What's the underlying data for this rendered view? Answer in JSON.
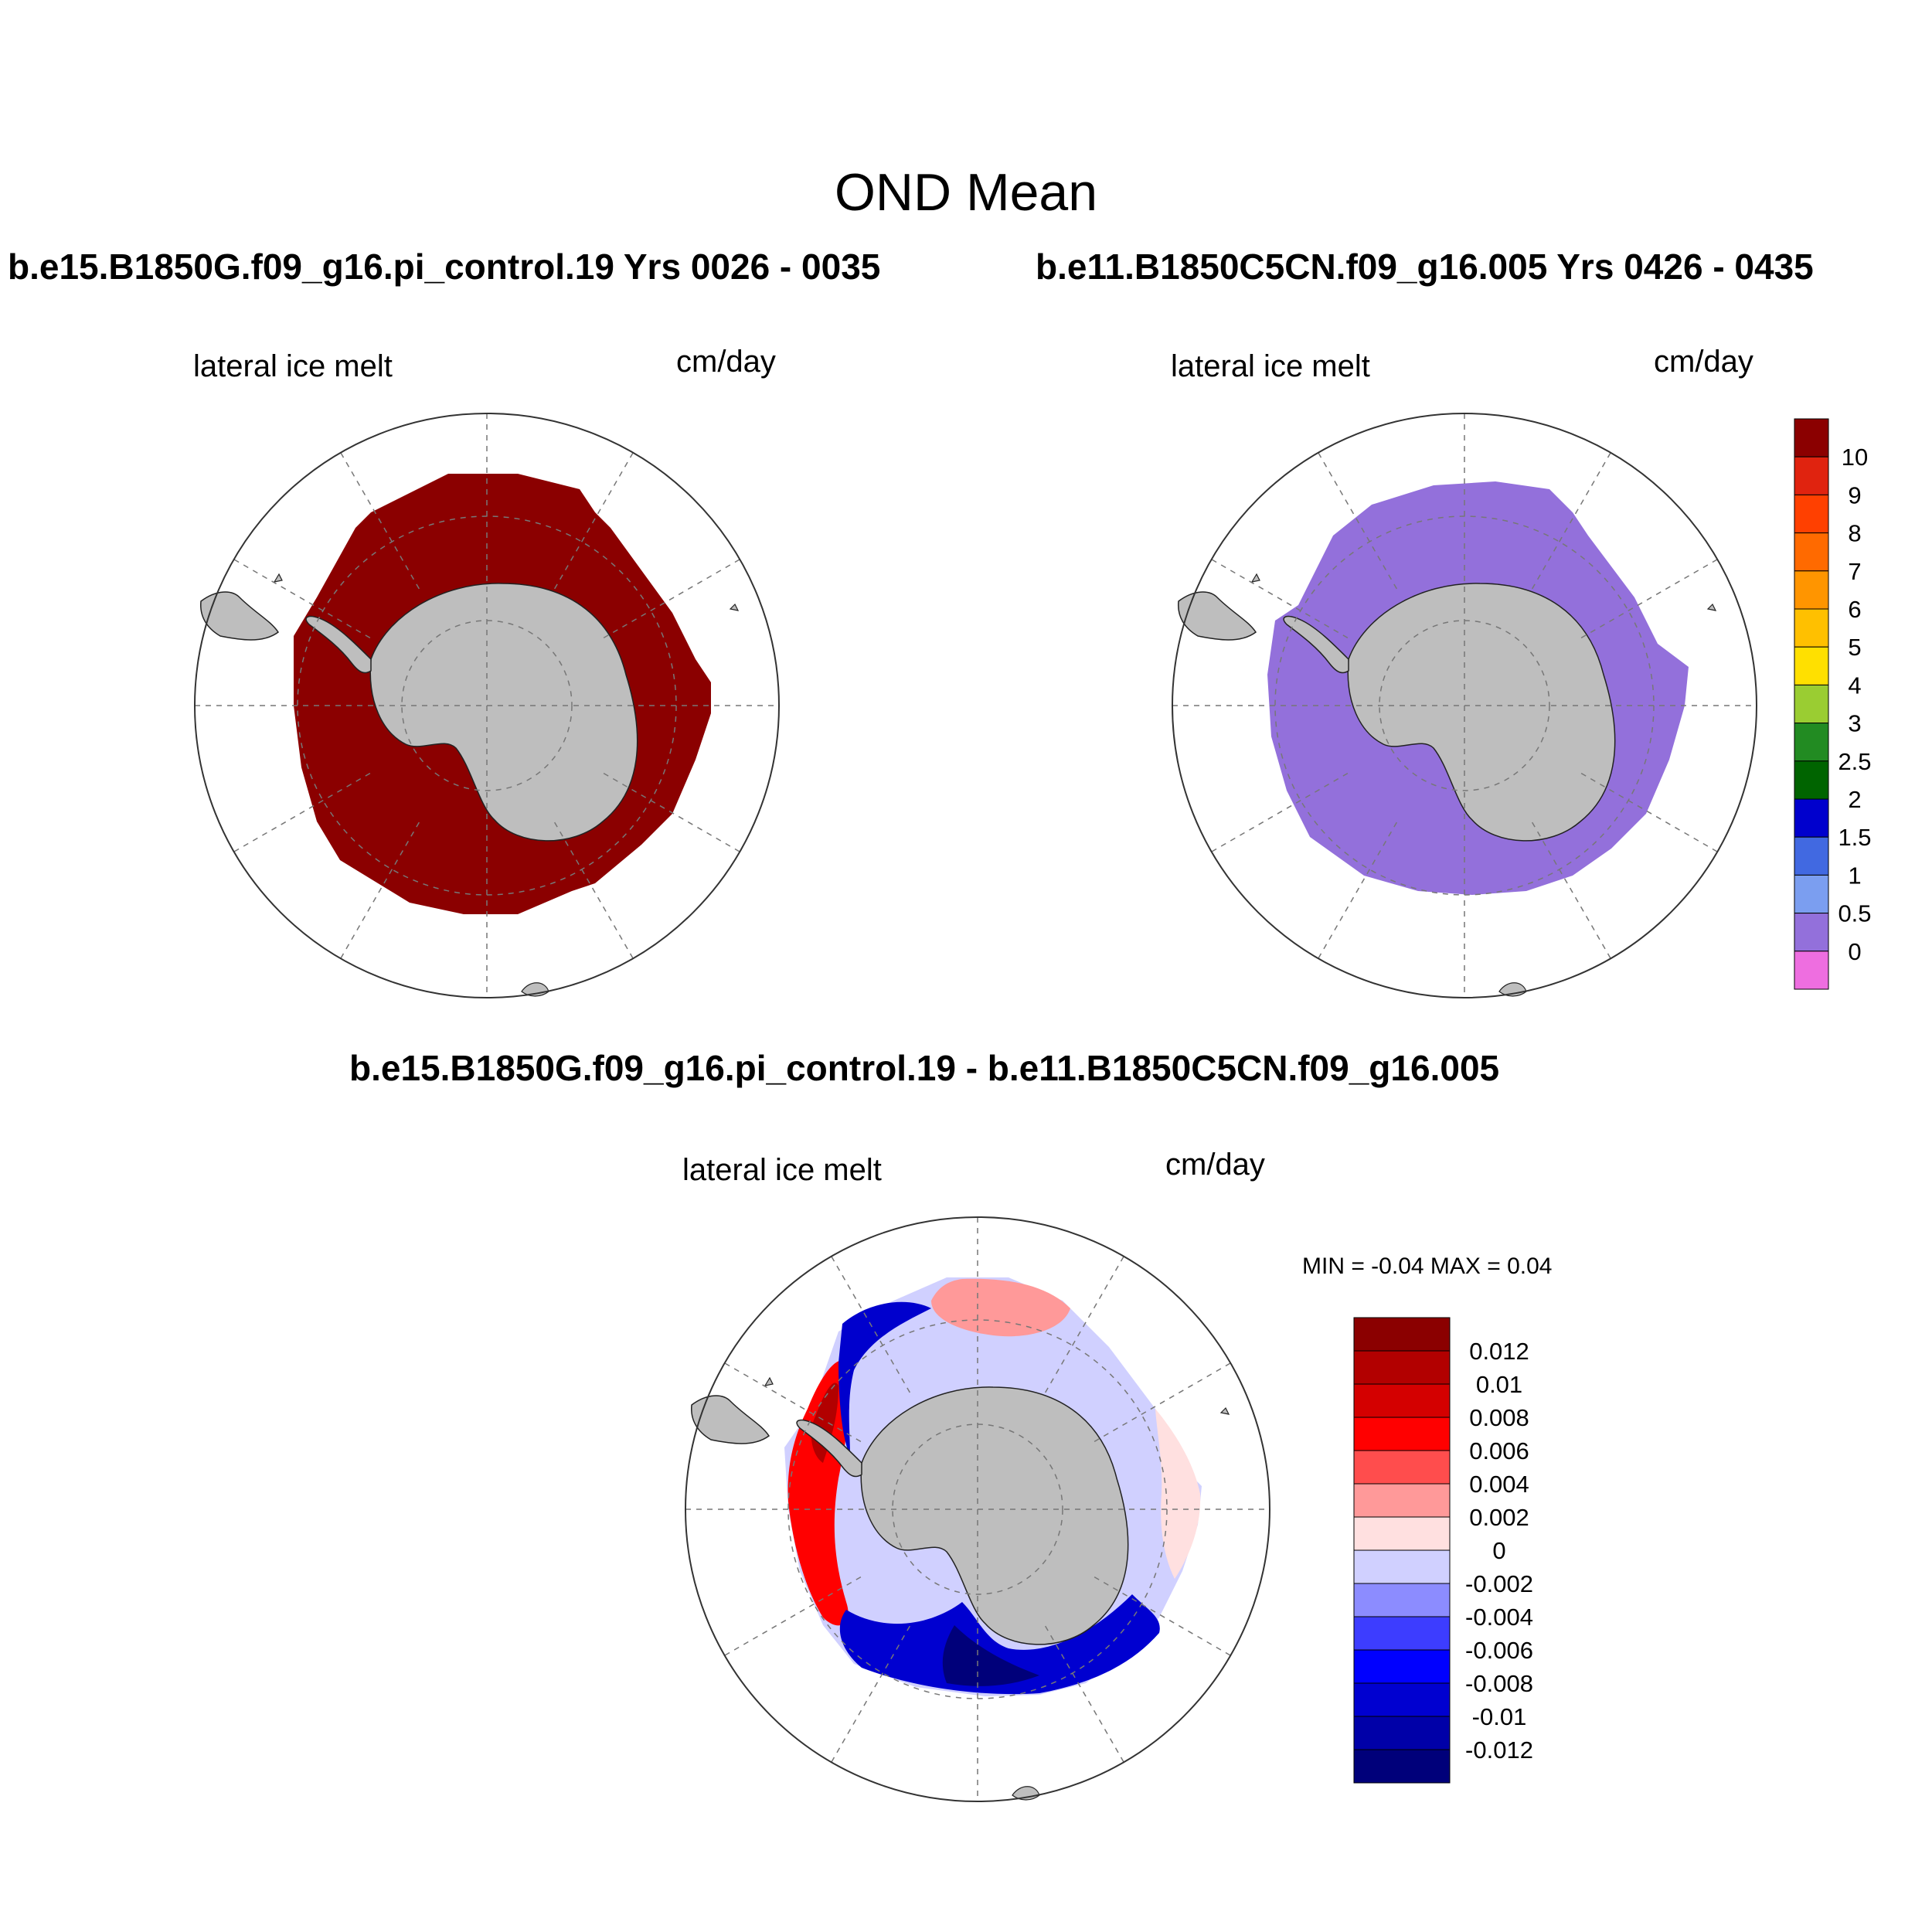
{
  "figure": {
    "title": "OND Mean"
  },
  "panels": [
    {
      "case_title": "b.e15.B1850G.f09_g16.pi_control.19  Yrs 0026 - 0035",
      "left_label": "lateral ice melt",
      "right_label": "cm/day",
      "fill_color": "#8b0000"
    },
    {
      "case_title": "b.e11.B1850C5CN.f09_g16.005  Yrs 0426 - 0435",
      "left_label": "lateral ice melt",
      "right_label": "cm/day",
      "fill_color": "#9370db"
    },
    {
      "case_title": "b.e15.B1850G.f09_g16.pi_control.19 - b.e11.B1850C5CN.f09_g16.005",
      "left_label": "lateral ice melt",
      "right_label": "cm/day",
      "minmax": "MIN =  -0.04 MAX =   0.04"
    }
  ],
  "colorbar_top": {
    "labels": [
      "10",
      "9",
      "8",
      "7",
      "6",
      "5",
      "4",
      "3",
      "2.5",
      "2",
      "1.5",
      "1",
      "0.5",
      "0"
    ],
    "colors": [
      "#8b0000",
      "#e0230f",
      "#ff4000",
      "#ff6a00",
      "#ff9500",
      "#ffc000",
      "#ffe000",
      "#9acd32",
      "#228b22",
      "#006400",
      "#0000cd",
      "#4169e1",
      "#7b9ef0",
      "#9370db",
      "#ee6ee0"
    ]
  },
  "colorbar_diff": {
    "labels": [
      "0.012",
      "0.01",
      "0.008",
      "0.006",
      "0.004",
      "0.002",
      "0",
      "-0.002",
      "-0.004",
      "-0.006",
      "-0.008",
      "-0.01",
      "-0.012"
    ],
    "colors": [
      "#8b0000",
      "#b20000",
      "#d40000",
      "#ff0000",
      "#ff4d4d",
      "#ff9999",
      "#ffe0e0",
      "#d0d0ff",
      "#8c8cff",
      "#3d3dff",
      "#0000ff",
      "#0000d0",
      "#0000a8",
      "#00007a"
    ]
  }
}
